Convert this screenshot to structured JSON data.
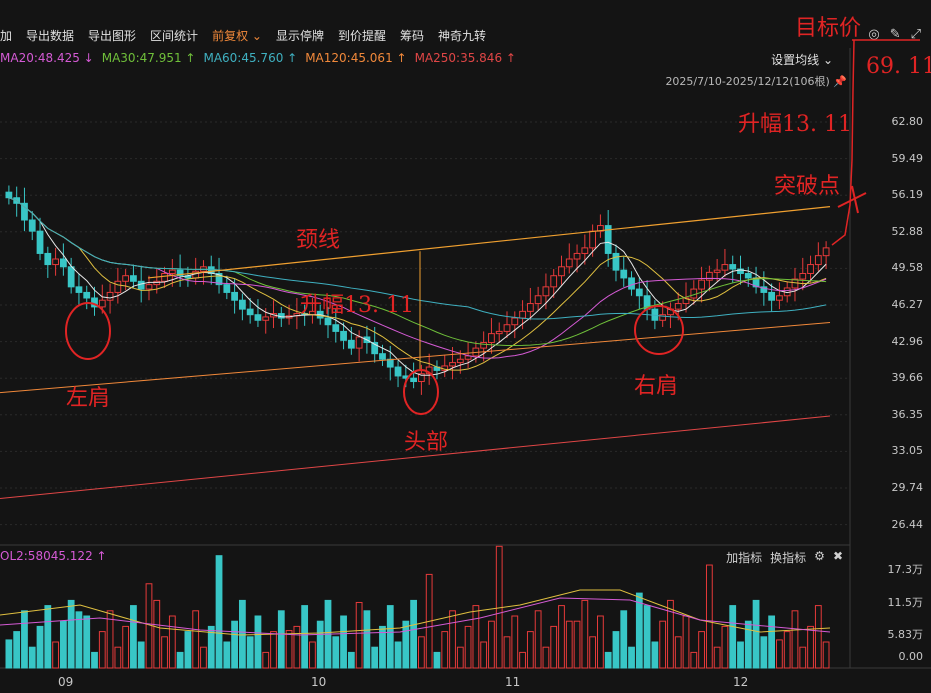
{
  "toolbar": {
    "items": [
      "加",
      "导出数据",
      "导出图形",
      "区间统计",
      "前复权 ⌄",
      "显示停牌",
      "到价提醒",
      "筹码",
      "神奇九转"
    ],
    "active_index": 4
  },
  "ma_indicators": [
    {
      "label": "MA20:48.425 ↓",
      "color": "#d45ad4"
    },
    {
      "label": "MA30:47.951 ↑",
      "color": "#6fbf3a"
    },
    {
      "label": "MA60:45.760 ↑",
      "color": "#3fb0c0"
    },
    {
      "label": "MA120:45.061 ↑",
      "color": "#f0883a"
    },
    {
      "label": "MA250:35.846 ↑",
      "color": "#e04646"
    }
  ],
  "set_ma_label": "设置均线 ⌄",
  "date_range": "2025/7/10-2025/12/12(106根)",
  "y_axis_labels": [
    "62.80",
    "59.49",
    "56.19",
    "52.88",
    "49.58",
    "46.27",
    "42.96",
    "39.66",
    "36.35",
    "33.05",
    "29.74",
    "26.44"
  ],
  "vol_header": "OL2:58045.122 ↑",
  "vol_tools": [
    "加指标",
    "换指标",
    "⚙",
    "✖"
  ],
  "vol_y_labels": [
    "17.3万",
    "11.5万",
    "5.83万",
    "0.00"
  ],
  "x_axis_labels": [
    "09",
    "10",
    "11",
    "12"
  ],
  "annotations": {
    "target_price": "目标价",
    "target_value": "69. 11",
    "rise_right": "升幅13. 11",
    "breakout": "突破点",
    "neckline": "颈线",
    "rise_mid": "升幅13. 11",
    "left_shoulder": "左肩",
    "head": "头部",
    "right_shoulder": "右肩"
  },
  "colors": {
    "up": "#e63a3a",
    "down": "#38c6c6",
    "neckline": "#f0a030"
  }
}
